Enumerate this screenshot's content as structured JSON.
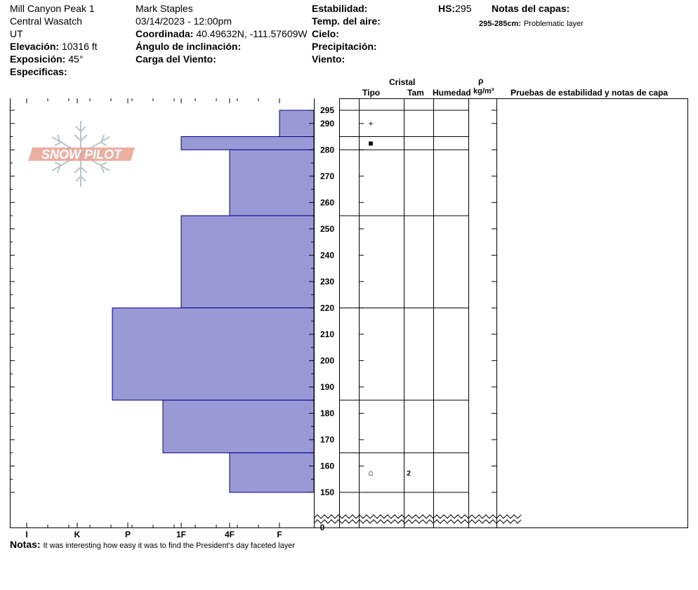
{
  "header": {
    "location": "Mill Canyon Peak 1",
    "region": "Central Wasatch",
    "state": "UT",
    "elevation_label": "Elevación:",
    "elevation_value": "10316 ft",
    "aspect_label": "Exposición:",
    "aspect_value": "45°",
    "specifics_label": "Especificas:",
    "observer": "Mark Staples",
    "datetime": "03/14/2023 - 12:00pm",
    "coord_label": "Coordinada:",
    "coord_value": "40.49632N, -111.57609W",
    "slope_label": "Ángulo de inclinación:",
    "wind_load_label": "Carga del Viento:",
    "stability_label": "Estabilidad:",
    "air_temp_label": "Temp. del aire:",
    "sky_label": "Cielo:",
    "precip_label": "Precipitación:",
    "wind_label": "Viento:",
    "hs_label": "HS:",
    "hs_value": "295",
    "layer_notes_label": "Notas del capas:",
    "layer_note_range": "295-285cm:",
    "layer_note_text": "Problematic layer"
  },
  "columns": {
    "crystal": "Cristal",
    "type": "Tipo",
    "size": "Tam",
    "moisture": "Humedad",
    "rho": "ρ",
    "density_unit": "kg/m³",
    "tests": "Pruebas de estabilidad y notas de capa"
  },
  "logo_text": "SNOW PILOT",
  "notes_label": "Notas:",
  "notes_text": "It was interesting how easy it was to find the President's day faceted layer",
  "colors": {
    "bar_fill": "#9999d6",
    "bar_stroke": "#00008b",
    "logo": "#e8a090"
  },
  "chart_data": {
    "type": "bar",
    "orientation": "horizontal",
    "hardness_ticks": [
      "I",
      "K",
      "P",
      "1F",
      "4F",
      "F"
    ],
    "depth_ticks": [
      150,
      160,
      170,
      180,
      190,
      200,
      210,
      220,
      230,
      240,
      250,
      260,
      270,
      280,
      290,
      295
    ],
    "depth_zero_label": "0",
    "layers": [
      {
        "top": 295,
        "bottom": 285,
        "hardness": "F"
      },
      {
        "top": 285,
        "bottom": 280,
        "hardness": "1F"
      },
      {
        "top": 280,
        "bottom": 255,
        "hardness": "4F"
      },
      {
        "top": 255,
        "bottom": 220,
        "hardness": "1F"
      },
      {
        "top": 220,
        "bottom": 185,
        "hardness": "P-"
      },
      {
        "top": 185,
        "bottom": 165,
        "hardness": "1F-"
      },
      {
        "top": 165,
        "bottom": 150,
        "hardness": "4F"
      }
    ],
    "crystal_rows": [
      {
        "depth_top": 295,
        "depth_bottom": 285,
        "type_symbol": "+",
        "size": ""
      },
      {
        "depth_top": 285,
        "depth_bottom": 280,
        "type_symbol": "■",
        "size": ""
      },
      {
        "depth_top": 165,
        "depth_bottom": 150,
        "type_symbol": "⌂",
        "size": "2"
      }
    ]
  }
}
